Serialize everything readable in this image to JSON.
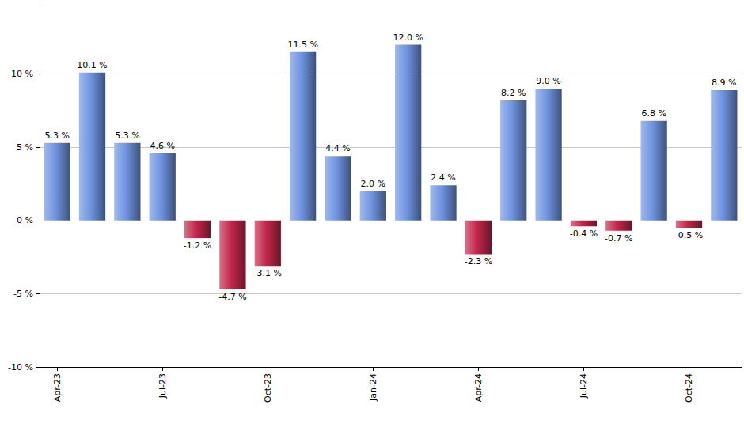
{
  "chart_data": {
    "type": "bar",
    "categories": [
      "Apr-23",
      null,
      null,
      "Jul-23",
      null,
      null,
      "Oct-23",
      null,
      null,
      "Jan-24",
      null,
      null,
      "Apr-24",
      null,
      null,
      "Jul-24",
      null,
      null,
      "Oct-24",
      null
    ],
    "values": [
      5.3,
      10.1,
      5.3,
      4.6,
      -1.2,
      -4.7,
      -3.1,
      11.5,
      4.4,
      2.0,
      12.0,
      2.4,
      -2.3,
      8.2,
      9.0,
      -0.4,
      -0.7,
      6.8,
      -0.5,
      8.9
    ],
    "value_labels": [
      "5.3 %",
      "10.1 %",
      "5.3 %",
      "4.6 %",
      "-1.2 %",
      "-4.7 %",
      "-3.1 %",
      "11.5 %",
      "4.4 %",
      "2.0 %",
      "12.0 %",
      "2.4 %",
      "-2.3 %",
      "8.2 %",
      "9.0 %",
      "-0.4 %",
      "-0.7 %",
      "6.8 %",
      "-0.5 %",
      "8.9 %"
    ],
    "colors": [
      "#6f93e0",
      "#6f93e0",
      "#6f93e0",
      "#6f93e0",
      "#c2264a",
      "#c2264a",
      "#c2264a",
      "#6f93e0",
      "#6f93e0",
      "#6f93e0",
      "#6f93e0",
      "#6f93e0",
      "#c2264a",
      "#6f93e0",
      "#6f93e0",
      "#c2264a",
      "#c2264a",
      "#6f93e0",
      "#c2264a",
      "#6f93e0"
    ],
    "ylim": [
      -10,
      15
    ],
    "yticks": [
      {
        "value": -10,
        "label": "-10 %"
      },
      {
        "value": -5,
        "label": "-5 %"
      },
      {
        "value": 0,
        "label": "0 %"
      },
      {
        "value": 5,
        "label": "5 %"
      },
      {
        "value": 10,
        "label": "10 %"
      }
    ],
    "reference_line": 10,
    "grid": true,
    "data_labels": true
  }
}
